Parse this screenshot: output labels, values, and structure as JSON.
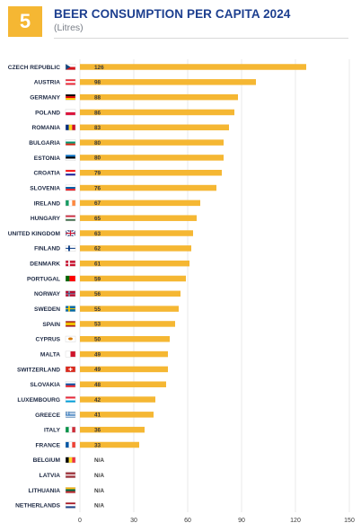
{
  "badge": "5",
  "colors": {
    "bar": "#f5b733",
    "title": "#1d3f8f",
    "grid": "#e3e3e3"
  },
  "chart_data": {
    "type": "bar",
    "orientation": "horizontal",
    "title": "BEER CONSUMPTION PER CAPITA 2024",
    "subtitle": "(Litres)",
    "xlim": [
      0,
      150
    ],
    "xticks": [
      0,
      30,
      60,
      90,
      120,
      150
    ],
    "grid": true,
    "categories": [
      "CZECH REPUBLIC",
      "AUSTRIA",
      "GERMANY",
      "POLAND",
      "ROMANIA",
      "BULGARIA",
      "ESTONIA",
      "CROATIA",
      "SLOVENIA",
      "IRELAND",
      "HUNGARY",
      "UNITED KINGDOM",
      "FINLAND",
      "DENMARK",
      "PORTUGAL",
      "NORWAY",
      "SWEDEN",
      "SPAIN",
      "CYPRUS",
      "MALTA",
      "SWITZERLAND",
      "SLOVAKIA",
      "LUXEMBOURG",
      "GREECE",
      "ITALY",
      "FRANCE",
      "BELGIUM",
      "LATVIA",
      "LITHUANIA",
      "NETHERLANDS"
    ],
    "values": [
      126,
      98,
      88,
      86,
      83,
      80,
      80,
      79,
      76,
      67,
      65,
      63,
      62,
      61,
      59,
      56,
      55,
      53,
      50,
      49,
      49,
      48,
      42,
      41,
      36,
      33,
      null,
      null,
      null,
      null
    ],
    "value_labels": [
      "126",
      "98",
      "88",
      "86",
      "83",
      "80",
      "80",
      "79",
      "76",
      "67",
      "65",
      "63",
      "62",
      "61",
      "59",
      "56",
      "55",
      "53",
      "50",
      "49",
      "49",
      "48",
      "42",
      "41",
      "36",
      "33",
      "N/A",
      "N/A",
      "N/A",
      "N/A"
    ],
    "flags": [
      "flag-czech-republic-icon",
      "flag-austria-icon",
      "flag-germany-icon",
      "flag-poland-icon",
      "flag-romania-icon",
      "flag-bulgaria-icon",
      "flag-estonia-icon",
      "flag-croatia-icon",
      "flag-slovenia-icon",
      "flag-ireland-icon",
      "flag-hungary-icon",
      "flag-united-kingdom-icon",
      "flag-finland-icon",
      "flag-denmark-icon",
      "flag-portugal-icon",
      "flag-norway-icon",
      "flag-sweden-icon",
      "flag-spain-icon",
      "flag-cyprus-icon",
      "flag-malta-icon",
      "flag-switzerland-icon",
      "flag-slovakia-icon",
      "flag-luxembourg-icon",
      "flag-greece-icon",
      "flag-italy-icon",
      "flag-france-icon",
      "flag-belgium-icon",
      "flag-latvia-icon",
      "flag-lithuania-icon",
      "flag-netherlands-icon"
    ]
  }
}
